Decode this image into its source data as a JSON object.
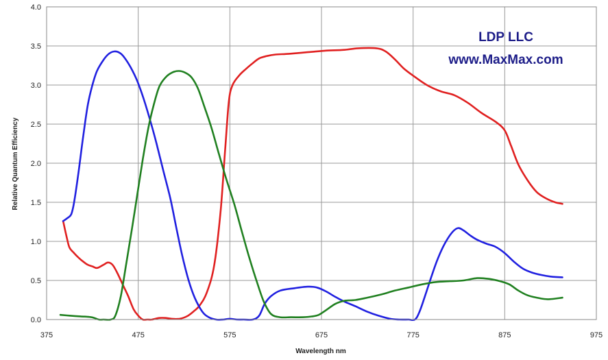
{
  "chart_data": {
    "type": "line",
    "xlabel": "Wavelength nm",
    "ylabel": "Relative Quantum Efficiency",
    "xlim": [
      375,
      975
    ],
    "ylim": [
      0,
      4
    ],
    "x_ticks": [
      375,
      475,
      575,
      675,
      775,
      875,
      975
    ],
    "y_ticks": [
      0,
      0.5,
      1,
      1.5,
      2,
      2.5,
      3,
      3.5,
      4
    ],
    "x_tick_labels": [
      "375",
      "475",
      "575",
      "675",
      "775",
      "875",
      "975"
    ],
    "y_tick_labels": [
      "0.0",
      "0.5",
      "1.0",
      "1.5",
      "2.0",
      "2.5",
      "3.0",
      "3.5",
      "4.0"
    ],
    "grid": true,
    "annotations": [
      "LDP LLC",
      "www.MaxMax.com"
    ],
    "series": [
      {
        "color": "#e02020",
        "points": [
          [
            393,
            1.26
          ],
          [
            397,
            1.05
          ],
          [
            400,
            0.92
          ],
          [
            405,
            0.85
          ],
          [
            410,
            0.79
          ],
          [
            415,
            0.74
          ],
          [
            420,
            0.7
          ],
          [
            425,
            0.68
          ],
          [
            430,
            0.66
          ],
          [
            437,
            0.7
          ],
          [
            442,
            0.73
          ],
          [
            447,
            0.7
          ],
          [
            452,
            0.6
          ],
          [
            458,
            0.45
          ],
          [
            464,
            0.3
          ],
          [
            470,
            0.13
          ],
          [
            475,
            0.05
          ],
          [
            480,
            0.0
          ],
          [
            485,
            -0.01
          ],
          [
            490,
            0.0
          ],
          [
            498,
            0.02
          ],
          [
            505,
            0.02
          ],
          [
            512,
            0.01
          ],
          [
            520,
            0.01
          ],
          [
            528,
            0.04
          ],
          [
            535,
            0.1
          ],
          [
            542,
            0.18
          ],
          [
            550,
            0.35
          ],
          [
            558,
            0.7
          ],
          [
            565,
            1.4
          ],
          [
            570,
            2.2
          ],
          [
            574,
            2.8
          ],
          [
            578,
            3.0
          ],
          [
            585,
            3.12
          ],
          [
            592,
            3.2
          ],
          [
            600,
            3.28
          ],
          [
            607,
            3.34
          ],
          [
            615,
            3.37
          ],
          [
            625,
            3.39
          ],
          [
            640,
            3.4
          ],
          [
            660,
            3.42
          ],
          [
            680,
            3.44
          ],
          [
            700,
            3.45
          ],
          [
            715,
            3.47
          ],
          [
            735,
            3.47
          ],
          [
            745,
            3.43
          ],
          [
            755,
            3.33
          ],
          [
            765,
            3.21
          ],
          [
            775,
            3.12
          ],
          [
            790,
            3.0
          ],
          [
            805,
            2.92
          ],
          [
            820,
            2.87
          ],
          [
            835,
            2.77
          ],
          [
            850,
            2.64
          ],
          [
            865,
            2.53
          ],
          [
            875,
            2.42
          ],
          [
            882,
            2.22
          ],
          [
            890,
            1.98
          ],
          [
            900,
            1.78
          ],
          [
            910,
            1.63
          ],
          [
            920,
            1.55
          ],
          [
            930,
            1.5
          ],
          [
            938,
            1.48
          ]
        ]
      },
      {
        "color": "#2020e0",
        "points": [
          [
            393,
            1.26
          ],
          [
            398,
            1.3
          ],
          [
            402,
            1.35
          ],
          [
            405,
            1.5
          ],
          [
            410,
            1.9
          ],
          [
            415,
            2.35
          ],
          [
            420,
            2.75
          ],
          [
            425,
            3.0
          ],
          [
            430,
            3.18
          ],
          [
            437,
            3.32
          ],
          [
            443,
            3.4
          ],
          [
            449,
            3.43
          ],
          [
            455,
            3.41
          ],
          [
            460,
            3.35
          ],
          [
            467,
            3.22
          ],
          [
            474,
            3.05
          ],
          [
            481,
            2.82
          ],
          [
            488,
            2.55
          ],
          [
            495,
            2.25
          ],
          [
            502,
            1.92
          ],
          [
            510,
            1.55
          ],
          [
            517,
            1.15
          ],
          [
            523,
            0.82
          ],
          [
            530,
            0.5
          ],
          [
            537,
            0.27
          ],
          [
            545,
            0.1
          ],
          [
            552,
            0.03
          ],
          [
            560,
            0.0
          ],
          [
            568,
            0.0
          ],
          [
            575,
            0.01
          ],
          [
            583,
            0.0
          ],
          [
            590,
            0.0
          ],
          [
            600,
            0.0
          ],
          [
            607,
            0.05
          ],
          [
            613,
            0.2
          ],
          [
            620,
            0.3
          ],
          [
            630,
            0.37
          ],
          [
            645,
            0.4
          ],
          [
            660,
            0.42
          ],
          [
            670,
            0.41
          ],
          [
            680,
            0.36
          ],
          [
            690,
            0.29
          ],
          [
            700,
            0.23
          ],
          [
            712,
            0.17
          ],
          [
            725,
            0.1
          ],
          [
            737,
            0.05
          ],
          [
            750,
            0.01
          ],
          [
            760,
            0.0
          ],
          [
            770,
            0.0
          ],
          [
            777,
            0.0
          ],
          [
            782,
            0.1
          ],
          [
            788,
            0.3
          ],
          [
            795,
            0.55
          ],
          [
            802,
            0.78
          ],
          [
            810,
            0.98
          ],
          [
            818,
            1.12
          ],
          [
            824,
            1.17
          ],
          [
            830,
            1.14
          ],
          [
            838,
            1.07
          ],
          [
            845,
            1.02
          ],
          [
            855,
            0.97
          ],
          [
            865,
            0.93
          ],
          [
            875,
            0.85
          ],
          [
            885,
            0.74
          ],
          [
            895,
            0.65
          ],
          [
            905,
            0.6
          ],
          [
            915,
            0.57
          ],
          [
            925,
            0.55
          ],
          [
            938,
            0.54
          ]
        ]
      },
      {
        "color": "#208020",
        "points": [
          [
            390,
            0.06
          ],
          [
            400,
            0.05
          ],
          [
            412,
            0.04
          ],
          [
            424,
            0.03
          ],
          [
            432,
            0.0
          ],
          [
            437,
            0.0
          ],
          [
            445,
            0.0
          ],
          [
            450,
            0.05
          ],
          [
            456,
            0.3
          ],
          [
            462,
            0.72
          ],
          [
            468,
            1.15
          ],
          [
            474,
            1.6
          ],
          [
            480,
            2.05
          ],
          [
            486,
            2.45
          ],
          [
            492,
            2.75
          ],
          [
            498,
            2.98
          ],
          [
            505,
            3.1
          ],
          [
            512,
            3.16
          ],
          [
            519,
            3.18
          ],
          [
            526,
            3.16
          ],
          [
            533,
            3.1
          ],
          [
            540,
            2.96
          ],
          [
            547,
            2.73
          ],
          [
            555,
            2.45
          ],
          [
            563,
            2.12
          ],
          [
            571,
            1.8
          ],
          [
            580,
            1.47
          ],
          [
            588,
            1.13
          ],
          [
            596,
            0.8
          ],
          [
            604,
            0.5
          ],
          [
            612,
            0.23
          ],
          [
            620,
            0.07
          ],
          [
            630,
            0.03
          ],
          [
            642,
            0.03
          ],
          [
            655,
            0.03
          ],
          [
            665,
            0.04
          ],
          [
            672,
            0.06
          ],
          [
            680,
            0.12
          ],
          [
            690,
            0.2
          ],
          [
            700,
            0.24
          ],
          [
            712,
            0.25
          ],
          [
            725,
            0.28
          ],
          [
            740,
            0.32
          ],
          [
            755,
            0.37
          ],
          [
            770,
            0.41
          ],
          [
            785,
            0.45
          ],
          [
            800,
            0.48
          ],
          [
            815,
            0.49
          ],
          [
            830,
            0.5
          ],
          [
            845,
            0.53
          ],
          [
            858,
            0.52
          ],
          [
            870,
            0.49
          ],
          [
            880,
            0.45
          ],
          [
            890,
            0.37
          ],
          [
            900,
            0.31
          ],
          [
            910,
            0.28
          ],
          [
            922,
            0.26
          ],
          [
            938,
            0.28
          ]
        ]
      }
    ]
  }
}
